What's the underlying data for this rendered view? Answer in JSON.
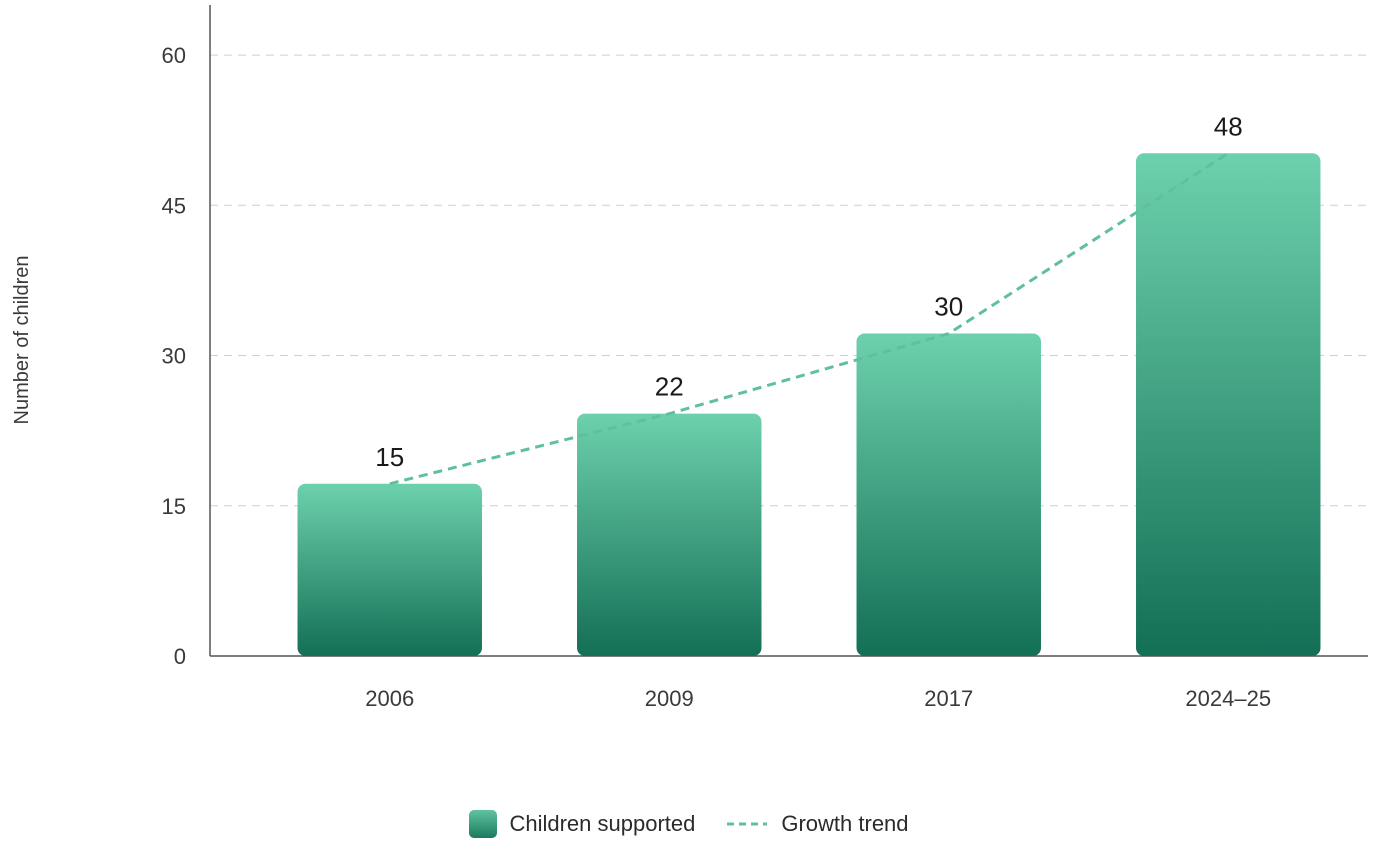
{
  "chart_data": {
    "type": "bar",
    "categories": [
      "2006",
      "2009",
      "2017",
      "2024–25"
    ],
    "series": [
      {
        "name": "Children supported",
        "values": [
          15,
          22,
          30,
          48
        ]
      },
      {
        "name": "Growth trend",
        "type": "line",
        "values": [
          15,
          22,
          30,
          48
        ]
      }
    ],
    "data_labels": [
      "15",
      "22",
      "30",
      "48"
    ],
    "ylabel": "Number of children",
    "xlabel": "",
    "ylim": [
      0,
      65
    ],
    "yticks": [
      0,
      15,
      30,
      45,
      60
    ],
    "grid": true,
    "legend_position": "bottom",
    "colors": {
      "bar_top": "#5fc3a0",
      "bar_bottom": "#17705a",
      "trend": "#5fbf9f",
      "grid": "#cfcfcf"
    }
  }
}
